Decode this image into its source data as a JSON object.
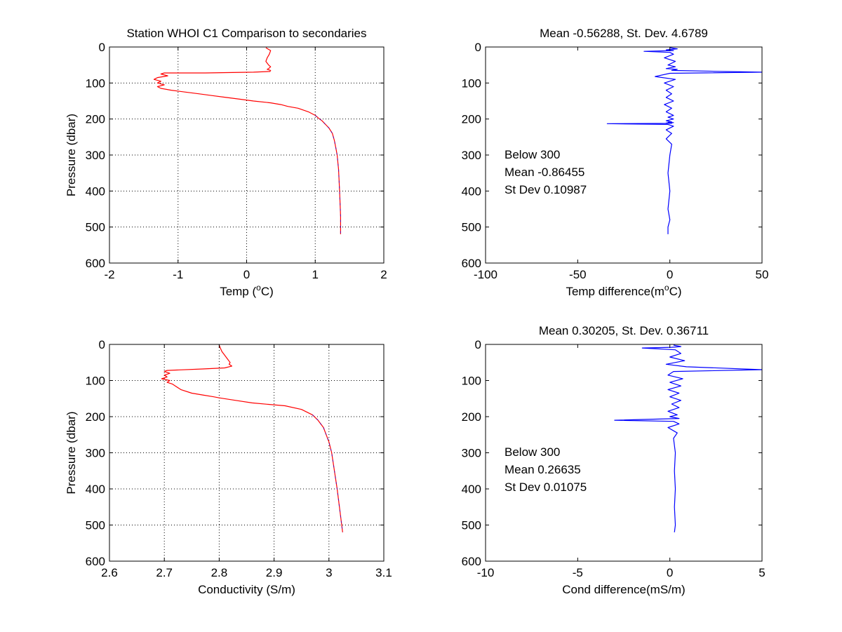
{
  "figure": {
    "background": "#ffffff",
    "gridColor": "#000000",
    "profileColor": "#ff0000",
    "overlayColor": "#0000ff",
    "diffColor": "#0000ff"
  },
  "chart_data": [
    {
      "id": "temp",
      "type": "line",
      "title": "Station  WHOI C1 Comparison to secondaries",
      "xlabel": "Temp (",
      "xlabel_sup": "o",
      "xlabel_tail": "C)",
      "ylabel": "Pressure (dbar)",
      "xlim": [
        -2,
        2
      ],
      "ylim": [
        600,
        0
      ],
      "y_reversed": true,
      "grid": true,
      "xticks": [
        -2,
        -1,
        0,
        1,
        2
      ],
      "xtick_labels": [
        "-2",
        "-1",
        "0",
        "1",
        "2"
      ],
      "yticks": [
        0,
        100,
        200,
        300,
        400,
        500,
        600
      ],
      "ytick_labels": [
        "0",
        "100",
        "200",
        "300",
        "400",
        "500",
        "600"
      ],
      "series": [
        {
          "color": "#ff0000",
          "x": [
            0.28,
            0.35,
            0.33,
            0.3,
            0.28,
            0.32,
            0.35,
            0.32,
            0.3,
            0.35,
            0.34,
            0.1,
            -0.6,
            -1.2,
            -1.25,
            -1.15,
            -1.3,
            -1.35,
            -1.25,
            -1.3,
            -1.2,
            -1.3,
            -1.25,
            -1.1,
            -0.9,
            -0.7,
            -0.5,
            -0.3,
            -0.1,
            0.1,
            0.35,
            0.5,
            0.6,
            0.75,
            0.9,
            1.0,
            1.05,
            1.1,
            1.15,
            1.2,
            1.25,
            1.28,
            1.3,
            1.32,
            1.34,
            1.35,
            1.36,
            1.37,
            1.37
          ],
          "y": [
            2,
            10,
            20,
            30,
            40,
            50,
            55,
            60,
            62,
            65,
            68,
            70,
            72,
            72,
            75,
            80,
            85,
            90,
            95,
            100,
            105,
            110,
            115,
            120,
            125,
            130,
            135,
            140,
            145,
            150,
            155,
            160,
            165,
            170,
            180,
            190,
            198,
            205,
            215,
            225,
            240,
            260,
            280,
            300,
            340,
            380,
            420,
            470,
            520
          ]
        }
      ]
    },
    {
      "id": "tempdiff",
      "type": "line",
      "title": "Mean -0.56288, St. Dev. 4.6789",
      "xlabel": "Temp difference(m",
      "xlabel_sup": "o",
      "xlabel_tail": "C)",
      "ylabel": "",
      "xlim": [
        -100,
        50
      ],
      "ylim": [
        600,
        0
      ],
      "y_reversed": true,
      "grid": false,
      "xticks": [
        -100,
        -50,
        0,
        50
      ],
      "xtick_labels": [
        "-100",
        "-50",
        "0",
        "50"
      ],
      "yticks": [
        0,
        100,
        200,
        300,
        400,
        500,
        600
      ],
      "ytick_labels": [
        "0",
        "100",
        "200",
        "300",
        "400",
        "500",
        "600"
      ],
      "annotation": [
        "Below 300",
        "Mean -0.86455",
        "St Dev 0.10987"
      ],
      "series": [
        {
          "color": "#0000ff",
          "x": [
            0,
            4,
            -2,
            2,
            -14,
            0,
            2,
            -3,
            3,
            -1,
            3,
            -2,
            4,
            1,
            50,
            0,
            -8,
            3,
            -3,
            2,
            -2,
            1,
            -2,
            2,
            -3,
            1,
            -2,
            2,
            -1,
            2,
            -2,
            1,
            -1,
            2,
            -2,
            1,
            -34,
            -1,
            2,
            -2,
            1,
            -1,
            -2,
            1,
            0,
            -1,
            0,
            -1,
            0,
            -1,
            -1
          ],
          "y": [
            2,
            5,
            8,
            10,
            12,
            15,
            20,
            30,
            40,
            50,
            55,
            60,
            62,
            65,
            70,
            73,
            82,
            90,
            100,
            110,
            120,
            130,
            140,
            150,
            160,
            170,
            180,
            190,
            195,
            200,
            205,
            208,
            209,
            210,
            211,
            212,
            213,
            215,
            220,
            230,
            240,
            250,
            255,
            270,
            300,
            350,
            400,
            450,
            480,
            500,
            520
          ]
        }
      ]
    },
    {
      "id": "cond",
      "type": "line",
      "title": "",
      "xlabel": "Conductivity (S/m)",
      "ylabel": "Pressure (dbar)",
      "xlim": [
        2.6,
        3.1
      ],
      "ylim": [
        600,
        0
      ],
      "y_reversed": true,
      "grid": true,
      "xticks": [
        2.6,
        2.7,
        2.8,
        2.9,
        3.0,
        3.1
      ],
      "xtick_labels": [
        "2.6",
        "2.7",
        "2.8",
        "2.9",
        "3",
        "3.1"
      ],
      "yticks": [
        0,
        100,
        200,
        300,
        400,
        500,
        600
      ],
      "ytick_labels": [
        "0",
        "100",
        "200",
        "300",
        "400",
        "500",
        "600"
      ],
      "series": [
        {
          "color": "#ff0000",
          "x": [
            2.8,
            2.802,
            2.805,
            2.81,
            2.815,
            2.82,
            2.818,
            2.823,
            2.81,
            2.77,
            2.705,
            2.7,
            2.71,
            2.7,
            2.705,
            2.695,
            2.71,
            2.705,
            2.715,
            2.72,
            2.73,
            2.75,
            2.77,
            2.79,
            2.8,
            2.83,
            2.86,
            2.89,
            2.92,
            2.95,
            2.97,
            2.98,
            2.99,
            2.995,
            3.0,
            3.005,
            3.01,
            3.015,
            3.02,
            3.025
          ],
          "y": [
            2,
            10,
            20,
            30,
            40,
            50,
            55,
            60,
            65,
            68,
            72,
            75,
            80,
            85,
            90,
            95,
            100,
            105,
            110,
            115,
            125,
            135,
            140,
            145,
            148,
            155,
            162,
            166,
            170,
            180,
            195,
            210,
            230,
            250,
            270,
            300,
            350,
            400,
            460,
            520
          ]
        }
      ]
    },
    {
      "id": "conddiff",
      "type": "line",
      "title": "Mean 0.30205, St. Dev. 0.36711",
      "xlabel": "Cond difference(mS/m)",
      "ylabel": "",
      "xlim": [
        -10,
        5
      ],
      "ylim": [
        600,
        0
      ],
      "y_reversed": true,
      "grid": false,
      "xticks": [
        -10,
        -5,
        0,
        5
      ],
      "xtick_labels": [
        "-10",
        "-5",
        "0",
        "5"
      ],
      "yticks": [
        0,
        100,
        200,
        300,
        400,
        500,
        600
      ],
      "ytick_labels": [
        "0",
        "100",
        "200",
        "300",
        "400",
        "500",
        "600"
      ],
      "annotation": [
        "Below 300",
        "Mean 0.26635",
        "St Dev 0.01075"
      ],
      "series": [
        {
          "color": "#0000ff",
          "x": [
            0.2,
            0.6,
            0.1,
            -1.5,
            0.3,
            0.6,
            0.0,
            0.8,
            -0.2,
            0.9,
            5.0,
            0.2,
            -0.1,
            0.7,
            0.0,
            0.6,
            -0.1,
            0.5,
            0.0,
            0.6,
            0.1,
            0.5,
            -0.1,
            0.4,
            0.0,
            0.5,
            -3.0,
            0.2,
            0.5,
            -0.1,
            0.4,
            0.2,
            0.3,
            0.25,
            0.3,
            0.25,
            0.3,
            0.25
          ],
          "y": [
            2,
            6,
            8,
            10,
            15,
            25,
            35,
            45,
            55,
            62,
            70,
            75,
            85,
            95,
            105,
            115,
            125,
            135,
            145,
            155,
            165,
            175,
            185,
            195,
            200,
            205,
            210,
            213,
            220,
            230,
            245,
            260,
            300,
            350,
            400,
            450,
            500,
            520
          ]
        }
      ]
    }
  ]
}
